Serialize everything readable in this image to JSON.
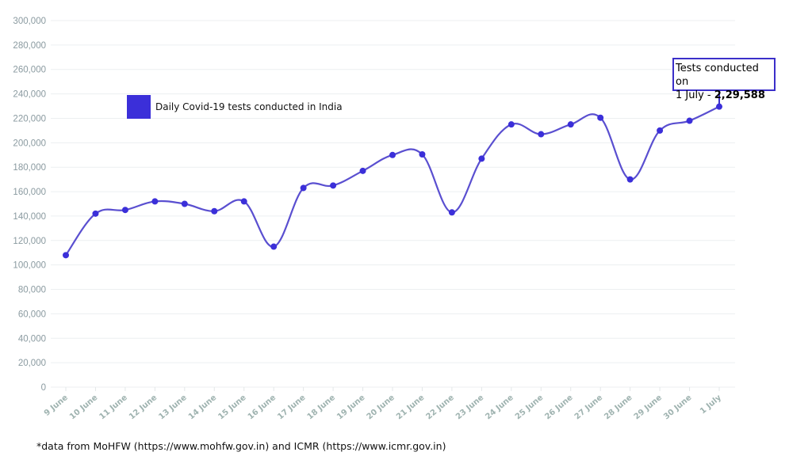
{
  "chart_data": {
    "type": "line",
    "title": "",
    "xlabel": "",
    "ylabel": "",
    "ylim": [
      0,
      300000
    ],
    "yticks": [
      0,
      20000,
      40000,
      60000,
      80000,
      100000,
      120000,
      140000,
      160000,
      180000,
      200000,
      220000,
      240000,
      260000,
      280000,
      300000
    ],
    "ytick_labels": [
      "0",
      "20,000",
      "40,000",
      "60,000",
      "80,000",
      "100,000",
      "120,000",
      "140,000",
      "160,000",
      "180,000",
      "200,000",
      "220,000",
      "240,000",
      "260,000",
      "280,000",
      "300,000"
    ],
    "grid": true,
    "categories": [
      "9 June",
      "10 June",
      "11 June",
      "12 June",
      "13 June",
      "14 June",
      "15 June",
      "16 June",
      "17 June",
      "18 June",
      "19 June",
      "20 June",
      "21 June",
      "22 June",
      "23 June",
      "24 June",
      "25 June",
      "26 June",
      "27 June",
      "28 June",
      "29 June",
      "30 June",
      "1 July"
    ],
    "series": [
      {
        "name": "Daily Covid-19 tests conducted in India",
        "color": "#3b2fd9",
        "values": [
          108000,
          142000,
          145000,
          152000,
          150000,
          144000,
          152000,
          115000,
          163000,
          165000,
          177000,
          190000,
          190500,
          143000,
          187000,
          215000,
          207000,
          215000,
          220500,
          170000,
          210000,
          218000,
          229588
        ]
      }
    ],
    "legend": {
      "position": "top-left",
      "label": "Daily Covid-19 tests conducted in India"
    },
    "annotation": {
      "line1": "Tests conducted on",
      "line2_prefix": "1 July - ",
      "line2_value": "2,29,588",
      "target": "1 July"
    }
  },
  "footnote": "*data from MoHFW (https://www.mohfw.gov.in) and ICMR (https://www.icmr.gov.in)"
}
